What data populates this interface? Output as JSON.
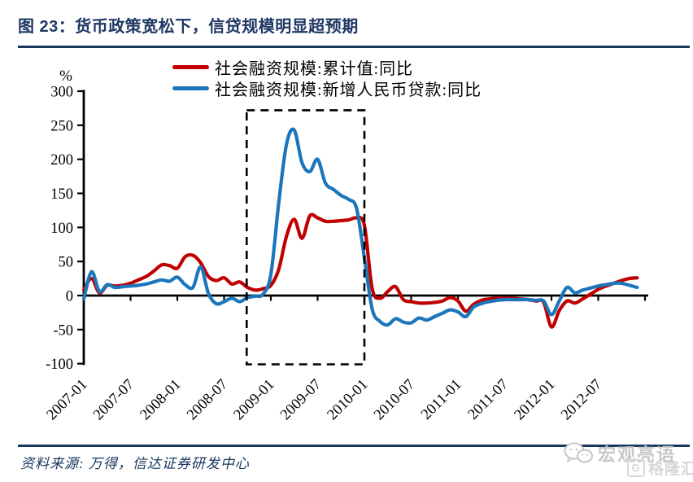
{
  "page": {
    "figure_title": "图 23：货币政策宽松下，信贷规模明显超预期",
    "source_note": "资料来源: 万得，信达证券研发中心",
    "watermark": {
      "wechat_name": "宏观亮语",
      "brand_name": "格隆汇",
      "brand_letter": "G"
    }
  },
  "chart_data": {
    "type": "line",
    "title": "",
    "unit_label": "%",
    "xlabel": "",
    "ylabel": "%",
    "ylim": [
      -100,
      300
    ],
    "yticks": [
      300,
      250,
      200,
      150,
      100,
      50,
      0,
      -50,
      -100
    ],
    "grid": false,
    "legend_position": "top",
    "x_start": "2007-01",
    "x_frequency": "monthly",
    "x_tick_labels": [
      "2007-01",
      "2007-07",
      "2008-01",
      "2008-07",
      "2009-01",
      "2009-07",
      "2010-01",
      "2010-07",
      "2011-01",
      "2011-07",
      "2012-01",
      "2012-07"
    ],
    "highlight_box": {
      "style": "dashed",
      "label_from": "2008-10",
      "label_to": "2010-01",
      "from_month_index": 20.9,
      "to_month_index": 36,
      "y_from": -101,
      "y_to": 272
    },
    "series": [
      {
        "name": "社会融资规模:累计值:同比",
        "color": "#C00000",
        "values": [
          8,
          25,
          4,
          15,
          14,
          15,
          18,
          23,
          28,
          36,
          45,
          44,
          40,
          57,
          59,
          48,
          28,
          22,
          26,
          17,
          20,
          12,
          8,
          10,
          15,
          38,
          87,
          112,
          84,
          117,
          114,
          109,
          109,
          110,
          111,
          114,
          103,
          10,
          -4,
          6,
          13,
          -6,
          -9,
          -11,
          -11,
          -10,
          -8,
          -3,
          -8,
          -23,
          -13,
          -7,
          -5,
          -4,
          -4,
          -4,
          -5,
          -6,
          -8,
          -10,
          -46,
          -22,
          -8,
          -11,
          -5,
          2,
          9,
          14,
          18,
          22,
          25,
          26
        ]
      },
      {
        "name": "社会融资规模:新增人民币贷款:同比",
        "color": "#1B76BC",
        "values": [
          -5,
          35,
          6,
          16,
          12,
          13,
          14,
          15,
          17,
          20,
          23,
          21,
          27,
          16,
          12,
          42,
          3,
          -12,
          -9,
          -4,
          -9,
          -3,
          -1,
          2,
          31,
          135,
          222,
          243,
          195,
          182,
          200,
          165,
          156,
          147,
          141,
          128,
          55,
          -20,
          -38,
          -43,
          -34,
          -39,
          -40,
          -33,
          -36,
          -31,
          -26,
          -21,
          -24,
          -31,
          -17,
          -12,
          -9,
          -7,
          -6,
          -6,
          -6,
          -6,
          -7,
          -8,
          -28,
          -8,
          12,
          4,
          8,
          11,
          14,
          16,
          18,
          18,
          15,
          12
        ]
      }
    ]
  }
}
